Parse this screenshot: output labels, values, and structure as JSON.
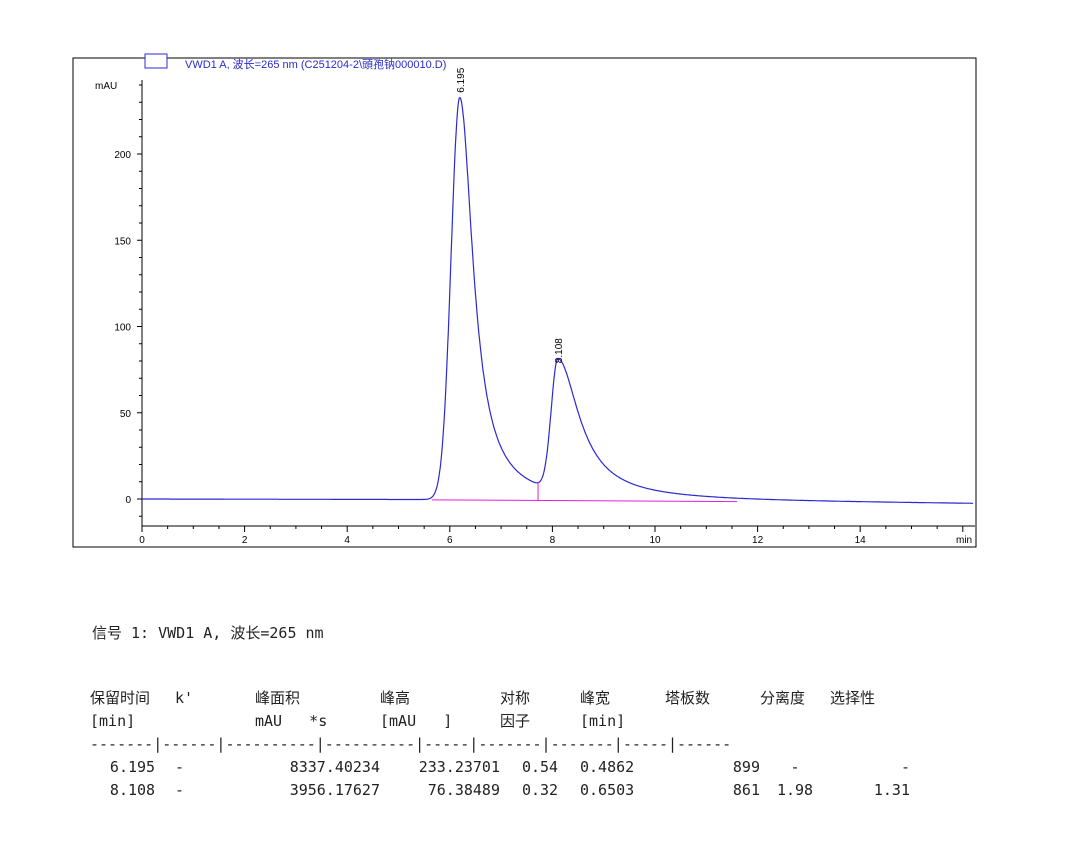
{
  "chart_data": {
    "type": "line",
    "legend": "VWD1 A, 波长=265 nm (C251204-2\\頭孢钠000010.D)",
    "legend_placement": "top-left",
    "ylabel": "mAU",
    "xunit": "min",
    "xlim": [
      0,
      16.2
    ],
    "ylim": [
      -15,
      245
    ],
    "xticks": [
      0,
      2,
      4,
      6,
      8,
      10,
      12,
      14
    ],
    "yticks": [
      0,
      50,
      100,
      150,
      200
    ],
    "grid": false,
    "line_color": "#2a2ad0",
    "baseline_color": "#e020e0",
    "peaks": [
      {
        "label": "6.195",
        "rt": 6.195,
        "height": 233.2
      },
      {
        "label": "8.108",
        "rt": 8.108,
        "height": 76.4
      }
    ],
    "integration_baseline": {
      "start": 5.65,
      "end": 11.6
    }
  },
  "report": {
    "title": "信号 1: VWD1 A, 波长=265 nm",
    "headers1": [
      "保留时间",
      "k'",
      "峰面积",
      "峰高",
      "对称",
      "峰宽",
      "塔板数",
      "分离度",
      "选择性"
    ],
    "headers2": [
      "[min]",
      "",
      "mAU   *s",
      "[mAU   ]",
      "因子",
      "[min]",
      "",
      "",
      ""
    ],
    "separator": [
      "-------|",
      "------|",
      "----------|",
      "----------|",
      "-----|",
      "-------|",
      "-------|",
      "-----|",
      "------"
    ],
    "rows": [
      [
        "6.195",
        "-",
        "8337.40234",
        "233.23701",
        "0.54",
        "0.4862",
        "899",
        "-",
        "-"
      ],
      [
        "8.108",
        "-",
        "3956.17627",
        "76.38489",
        "0.32",
        "0.6503",
        "861",
        "1.98",
        "1.31"
      ]
    ]
  }
}
